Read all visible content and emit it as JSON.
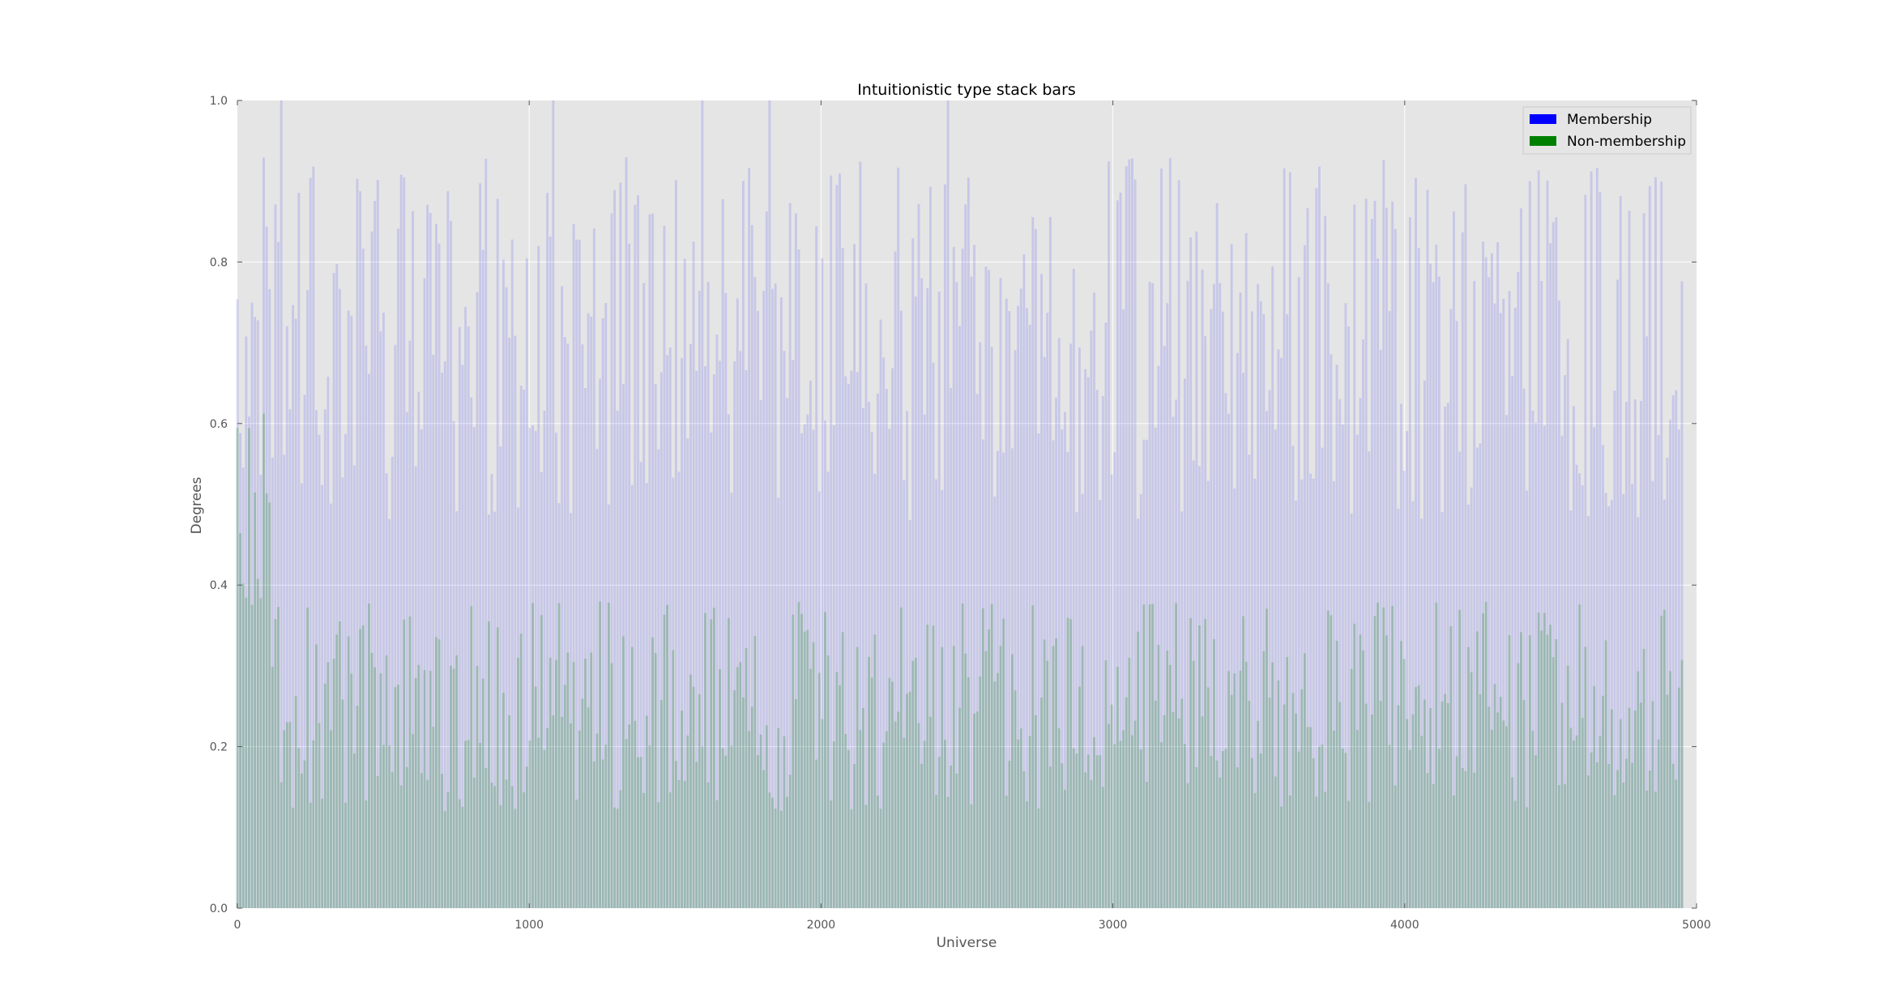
{
  "chart_data": {
    "type": "bar",
    "stacked": true,
    "title": "Intuitionistic type stack bars",
    "xlabel": "Universe",
    "ylabel": "Degrees",
    "xlim": [
      0,
      5000
    ],
    "ylim": [
      0.0,
      1.0
    ],
    "xticks": [
      "0",
      "1000",
      "2000",
      "3000",
      "4000",
      "5000"
    ],
    "yticks": [
      "0.0",
      "0.2",
      "0.4",
      "0.6",
      "0.8",
      "1.0"
    ],
    "grid": true,
    "legend_position": "top-right",
    "bar_count_approx": 495,
    "x_start": 0,
    "x_end": 4950,
    "series": [
      {
        "name": "Membership",
        "color": "#0000ff",
        "value_range_approx": [
          0.0,
          1.0
        ],
        "typical_range_approx": [
          0.55,
          0.9
        ]
      },
      {
        "name": "Non-membership",
        "color": "#008000",
        "value_range_approx": [
          0.1,
          0.62
        ],
        "typical_range_approx": [
          0.15,
          0.35
        ]
      }
    ]
  }
}
